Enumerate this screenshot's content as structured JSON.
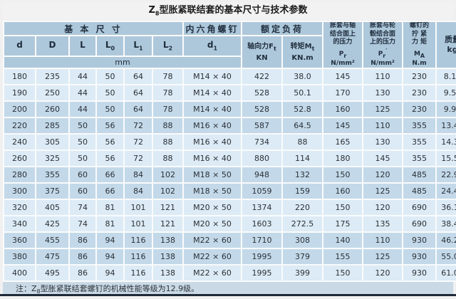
{
  "title": {
    "pre": "Z",
    "sub": "8",
    "post": "型胀紧联结套的基本尺寸与技术参数"
  },
  "header": {
    "group_basic": "基 本 尺 寸",
    "group_screw": "内六角螺钉",
    "group_load": "额定负荷",
    "sub_cols": [
      {
        "base": "d",
        "sub": ""
      },
      {
        "base": "D",
        "sub": ""
      },
      {
        "base": "L",
        "sub": ""
      },
      {
        "base": "L",
        "sub": "0"
      },
      {
        "base": "L",
        "sub": "1"
      },
      {
        "base": "L",
        "sub": "2"
      },
      {
        "base": "d",
        "sub": "1"
      }
    ],
    "load_cols": [
      {
        "base": "轴向力F",
        "sub": "t",
        "unit": "KN"
      },
      {
        "base": "转矩M",
        "sub": "t",
        "unit": "KN.m"
      }
    ],
    "tall_cols": [
      {
        "l1": "胀套与轴",
        "l2": "结合面上",
        "l3": "的压力",
        "sym": "P",
        "sym_sub": "r",
        "sym_sup": "",
        "unit": "N/mm²"
      },
      {
        "l1": "胀套与轮",
        "l2": "毂结合面",
        "l3": "上的压力",
        "sym": "P",
        "sym_sub": "r",
        "sym_sup": "′",
        "unit": "N/mm²"
      },
      {
        "l1": "螺钉的",
        "l2": "拧 紧",
        "l3": "力 矩",
        "sym": "M",
        "sym_sub": "A",
        "sym_sup": "",
        "unit": "N.m"
      }
    ],
    "mass_col": {
      "l1": "质量",
      "unit": "kg"
    },
    "unit_row": "mm"
  },
  "rows": [
    [
      "180",
      "235",
      "44",
      "50",
      "64",
      "78",
      "M14 × 40",
      "422",
      "38.0",
      "145",
      "110",
      "230",
      "8.15"
    ],
    [
      "190",
      "250",
      "44",
      "50",
      "64",
      "78",
      "M14 × 40",
      "528",
      "50.1",
      "170",
      "130",
      "230",
      "9.50"
    ],
    [
      "200",
      "260",
      "44",
      "50",
      "64",
      "78",
      "M14 × 40",
      "528",
      "52.8",
      "160",
      "125",
      "230",
      "9.90"
    ],
    [
      "220",
      "285",
      "50",
      "56",
      "72",
      "88",
      "M16 × 40",
      "587",
      "64.5",
      "145",
      "110",
      "355",
      "13.40"
    ],
    [
      "240",
      "305",
      "50",
      "56",
      "72",
      "88",
      "M16 × 40",
      "734",
      "88",
      "165",
      "130",
      "355",
      "14.30"
    ],
    [
      "260",
      "325",
      "50",
      "56",
      "72",
      "88",
      "M16 × 40",
      "880",
      "114",
      "180",
      "145",
      "355",
      "15.50"
    ],
    [
      "280",
      "355",
      "60",
      "66",
      "84",
      "102",
      "M18 × 50",
      "948",
      "132",
      "150",
      "120",
      "485",
      "22.90"
    ],
    [
      "300",
      "375",
      "60",
      "66",
      "84",
      "102",
      "M18 × 50",
      "1059",
      "159",
      "160",
      "125",
      "485",
      "24.40"
    ],
    [
      "320",
      "405",
      "74",
      "81",
      "101",
      "121",
      "M20 × 50",
      "1374",
      "220",
      "150",
      "120",
      "690",
      "36.10"
    ],
    [
      "340",
      "425",
      "74",
      "81",
      "101",
      "121",
      "M20 × 50",
      "1603",
      "272.5",
      "175",
      "135",
      "690",
      "38.40"
    ],
    [
      "360",
      "455",
      "86",
      "94",
      "116",
      "138",
      "M22 × 60",
      "1710",
      "308",
      "140",
      "110",
      "930",
      "46.20"
    ],
    [
      "380",
      "475",
      "86",
      "94",
      "116",
      "138",
      "M22 × 60",
      "1995",
      "379",
      "155",
      "125",
      "930",
      "55.00"
    ],
    [
      "400",
      "495",
      "86",
      "94",
      "116",
      "138",
      "M22 × 60",
      "1995",
      "399",
      "150",
      "120",
      "930",
      "61.00"
    ]
  ],
  "note": {
    "pre": "注：Z",
    "sub": "8",
    "post": "型胀紧联结套螺钉的机械性能等级为12.9级。"
  },
  "colors": {
    "header_bg": "#aec8db",
    "row_light": "#dcebf5",
    "row_dark": "#c3d9e9",
    "note_bg": "#c9dae6",
    "bottom_bar": "#1e2a38",
    "page_bg": "#f1f0f0"
  }
}
